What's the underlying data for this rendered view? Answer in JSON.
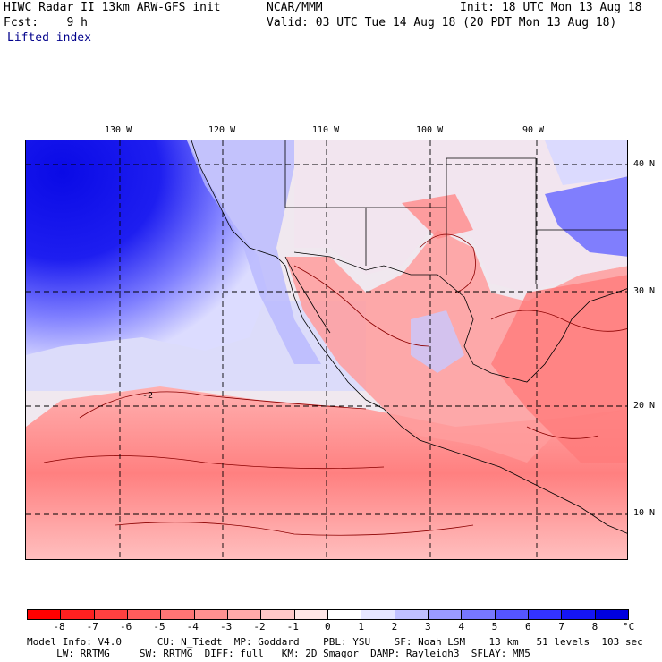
{
  "header": {
    "line1_left": "HIWC Radar II 13km ARW-GFS init",
    "line1_center": "NCAR/MMM",
    "line1_right": "Init: 18 UTC Mon 13 Aug 18",
    "line2_left": "Fcst:    9 h",
    "line2_right": "Valid: 03 UTC Tue 14 Aug 18 (20 PDT Mon 13 Aug 18)",
    "field_label": "Lifted index"
  },
  "map": {
    "longitude_labels": [
      "130 W",
      "120 W",
      "110 W",
      "100 W",
      "90 W"
    ],
    "latitude_labels": [
      "40 N",
      "30 N",
      "20 N",
      "10 N"
    ],
    "contour_label": "-2"
  },
  "colorbar": {
    "labels": [
      "-8",
      "-7",
      "-6",
      "-5",
      "-4",
      "-3",
      "-2",
      "-1",
      "0",
      "1",
      "2",
      "3",
      "4",
      "5",
      "6",
      "7",
      "8"
    ],
    "unit": "°C",
    "colors": [
      "#ff0000",
      "#ff2020",
      "#ff4040",
      "#ff5c5c",
      "#ff7575",
      "#ff9090",
      "#ffaaaa",
      "#ffc8c8",
      "#ffe6e6",
      "#ffffff",
      "#e6e6ff",
      "#c0c0ff",
      "#9a9aff",
      "#7777ff",
      "#5555ff",
      "#3333ff",
      "#1515f5",
      "#0000e0"
    ]
  },
  "footer": {
    "line1": "Model Info: V4.0      CU: N_Tiedt  MP: Goddard    PBL: YSU    SF: Noah LSM    13 km   51 levels  103 sec",
    "line2": "     LW: RRTMG     SW: RRTMG  DIFF: full   KM: 2D Smagor  DAMP: Rayleigh3  SFLAY: MM5"
  }
}
